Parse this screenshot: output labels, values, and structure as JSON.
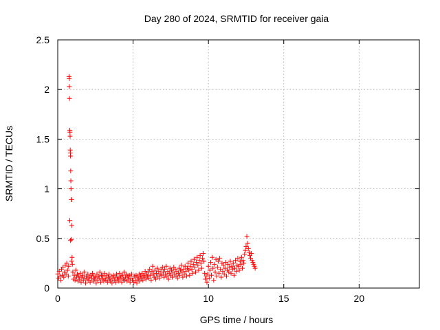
{
  "chart_data": {
    "type": "scatter",
    "title": "Day 280 of 2024, SRMTID for receiver gaia",
    "xlabel": "GPS time / hours",
    "ylabel": "SRMTID / TECUs",
    "xlim": [
      0,
      24
    ],
    "ylim": [
      0,
      2.5
    ],
    "xticks": [
      0,
      5,
      10,
      15,
      20
    ],
    "xtick_labels": [
      "0",
      "5",
      "10",
      "15",
      "20"
    ],
    "yticks": [
      0,
      0.5,
      1,
      1.5,
      2,
      2.5
    ],
    "ytick_labels": [
      "0",
      "0.5",
      "1",
      "1.5",
      "2",
      "2.5"
    ],
    "grid": true,
    "marker": "+",
    "marker_color": "#ff0000",
    "series": [
      {
        "name": "SRMTID",
        "points": [
          [
            0.0,
            0.14
          ],
          [
            0.05,
            0.1
          ],
          [
            0.1,
            0.17
          ],
          [
            0.15,
            0.12
          ],
          [
            0.2,
            0.08
          ],
          [
            0.25,
            0.19
          ],
          [
            0.3,
            0.13
          ],
          [
            0.35,
            0.21
          ],
          [
            0.4,
            0.11
          ],
          [
            0.45,
            0.16
          ],
          [
            0.5,
            0.23
          ],
          [
            0.55,
            0.14
          ],
          [
            0.6,
            0.25
          ],
          [
            0.65,
            0.18
          ],
          [
            0.7,
            0.12
          ],
          [
            0.72,
            0.22
          ],
          [
            0.75,
            2.13
          ],
          [
            0.76,
            2.11
          ],
          [
            0.77,
            2.03
          ],
          [
            0.78,
            1.91
          ],
          [
            0.8,
            1.59
          ],
          [
            0.81,
            1.57
          ],
          [
            0.82,
            1.53
          ],
          [
            0.83,
            1.39
          ],
          [
            0.84,
            1.36
          ],
          [
            0.85,
            1.33
          ],
          [
            0.86,
            1.18
          ],
          [
            0.87,
            1.08
          ],
          [
            0.88,
            1.0
          ],
          [
            0.9,
            0.89
          ],
          [
            0.92,
            0.89
          ],
          [
            0.8,
            0.68
          ],
          [
            0.93,
            0.63
          ],
          [
            0.85,
            0.48
          ],
          [
            0.9,
            0.49
          ],
          [
            0.95,
            0.31
          ],
          [
            0.92,
            0.27
          ],
          [
            0.97,
            0.24
          ],
          [
            1.0,
            0.16
          ],
          [
            1.05,
            0.09
          ],
          [
            1.1,
            0.13
          ],
          [
            1.15,
            0.08
          ],
          [
            1.2,
            0.18
          ],
          [
            1.25,
            0.11
          ],
          [
            1.3,
            0.14
          ],
          [
            1.35,
            0.07
          ],
          [
            1.4,
            0.12
          ],
          [
            1.45,
            0.09
          ],
          [
            1.5,
            0.15
          ],
          [
            1.55,
            0.06
          ],
          [
            1.6,
            0.11
          ],
          [
            1.65,
            0.13
          ],
          [
            1.7,
            0.08
          ],
          [
            1.75,
            0.16
          ],
          [
            1.8,
            0.1
          ],
          [
            1.85,
            0.05
          ],
          [
            1.9,
            0.12
          ],
          [
            1.95,
            0.09
          ],
          [
            2.0,
            0.14
          ],
          [
            2.05,
            0.08
          ],
          [
            2.1,
            0.11
          ],
          [
            2.15,
            0.06
          ],
          [
            2.2,
            0.13
          ],
          [
            2.25,
            0.1
          ],
          [
            2.3,
            0.15
          ],
          [
            2.35,
            0.07
          ],
          [
            2.4,
            0.12
          ],
          [
            2.45,
            0.09
          ],
          [
            2.5,
            0.11
          ],
          [
            2.55,
            0.05
          ],
          [
            2.6,
            0.14
          ],
          [
            2.65,
            0.08
          ],
          [
            2.7,
            0.12
          ],
          [
            2.75,
            0.1
          ],
          [
            2.8,
            0.16
          ],
          [
            2.85,
            0.06
          ],
          [
            2.9,
            0.13
          ],
          [
            2.95,
            0.09
          ],
          [
            3.0,
            0.12
          ],
          [
            3.05,
            0.07
          ],
          [
            3.1,
            0.15
          ],
          [
            3.15,
            0.1
          ],
          [
            3.2,
            0.08
          ],
          [
            3.25,
            0.13
          ],
          [
            3.3,
            0.06
          ],
          [
            3.35,
            0.11
          ],
          [
            3.4,
            0.14
          ],
          [
            3.45,
            0.09
          ],
          [
            3.5,
            0.07
          ],
          [
            3.55,
            0.12
          ],
          [
            3.6,
            0.05
          ],
          [
            3.65,
            0.1
          ],
          [
            3.7,
            0.13
          ],
          [
            3.75,
            0.08
          ],
          [
            3.8,
            0.11
          ],
          [
            3.85,
            0.06
          ],
          [
            3.9,
            0.14
          ],
          [
            3.95,
            0.09
          ],
          [
            4.0,
            0.11
          ],
          [
            4.05,
            0.07
          ],
          [
            4.1,
            0.15
          ],
          [
            4.15,
            0.1
          ],
          [
            4.2,
            0.12
          ],
          [
            4.25,
            0.06
          ],
          [
            4.3,
            0.13
          ],
          [
            4.35,
            0.09
          ],
          [
            4.4,
            0.16
          ],
          [
            4.45,
            0.08
          ],
          [
            4.5,
            0.11
          ],
          [
            4.55,
            0.14
          ],
          [
            4.6,
            0.07
          ],
          [
            4.65,
            0.12
          ],
          [
            4.7,
            0.09
          ],
          [
            4.75,
            0.13
          ],
          [
            4.8,
            0.06
          ],
          [
            4.85,
            0.1
          ],
          [
            4.9,
            0.14
          ],
          [
            4.95,
            0.08
          ],
          [
            5.0,
            0.1
          ],
          [
            5.05,
            0.06
          ],
          [
            5.1,
            0.12
          ],
          [
            5.15,
            0.08
          ],
          [
            5.2,
            0.13
          ],
          [
            5.25,
            0.05
          ],
          [
            5.3,
            0.11
          ],
          [
            5.35,
            0.09
          ],
          [
            5.4,
            0.14
          ],
          [
            5.45,
            0.07
          ],
          [
            5.5,
            0.12
          ],
          [
            5.55,
            0.1
          ],
          [
            5.6,
            0.15
          ],
          [
            5.65,
            0.08
          ],
          [
            5.7,
            0.13
          ],
          [
            5.75,
            0.11
          ],
          [
            5.8,
            0.17
          ],
          [
            5.85,
            0.09
          ],
          [
            5.9,
            0.14
          ],
          [
            5.95,
            0.12
          ],
          [
            6.0,
            0.16
          ],
          [
            6.05,
            0.1
          ],
          [
            6.1,
            0.19
          ],
          [
            6.15,
            0.13
          ],
          [
            6.2,
            0.08
          ],
          [
            6.25,
            0.17
          ],
          [
            6.3,
            0.22
          ],
          [
            6.35,
            0.14
          ],
          [
            6.4,
            0.11
          ],
          [
            6.45,
            0.18
          ],
          [
            6.5,
            0.09
          ],
          [
            6.55,
            0.15
          ],
          [
            6.6,
            0.2
          ],
          [
            6.65,
            0.12
          ],
          [
            6.7,
            0.17
          ],
          [
            6.75,
            0.1
          ],
          [
            6.8,
            0.14
          ],
          [
            6.85,
            0.19
          ],
          [
            6.9,
            0.13
          ],
          [
            6.95,
            0.21
          ],
          [
            7.0,
            0.16
          ],
          [
            7.05,
            0.11
          ],
          [
            7.1,
            0.19
          ],
          [
            7.15,
            0.14
          ],
          [
            7.2,
            0.22
          ],
          [
            7.25,
            0.12
          ],
          [
            7.3,
            0.17
          ],
          [
            7.35,
            0.09
          ],
          [
            7.4,
            0.15
          ],
          [
            7.45,
            0.2
          ],
          [
            7.5,
            0.13
          ],
          [
            7.55,
            0.18
          ],
          [
            7.6,
            0.11
          ],
          [
            7.65,
            0.16
          ],
          [
            7.7,
            0.21
          ],
          [
            7.75,
            0.14
          ],
          [
            7.8,
            0.19
          ],
          [
            7.85,
            0.12
          ],
          [
            7.9,
            0.17
          ],
          [
            7.95,
            0.1
          ],
          [
            8.0,
            0.15
          ],
          [
            8.05,
            0.2
          ],
          [
            8.1,
            0.13
          ],
          [
            8.15,
            0.18
          ],
          [
            8.2,
            0.23
          ],
          [
            8.25,
            0.16
          ],
          [
            8.3,
            0.11
          ],
          [
            8.35,
            0.19
          ],
          [
            8.4,
            0.14
          ],
          [
            8.45,
            0.22
          ],
          [
            8.5,
            0.17
          ],
          [
            8.55,
            0.12
          ],
          [
            8.6,
            0.2
          ],
          [
            8.65,
            0.25
          ],
          [
            8.7,
            0.18
          ],
          [
            8.75,
            0.13
          ],
          [
            8.8,
            0.22
          ],
          [
            8.85,
            0.27
          ],
          [
            8.9,
            0.19
          ],
          [
            8.95,
            0.15
          ],
          [
            9.0,
            0.24
          ],
          [
            9.05,
            0.29
          ],
          [
            9.1,
            0.21
          ],
          [
            9.15,
            0.16
          ],
          [
            9.2,
            0.26
          ],
          [
            9.25,
            0.31
          ],
          [
            9.3,
            0.23
          ],
          [
            9.35,
            0.18
          ],
          [
            9.4,
            0.28
          ],
          [
            9.45,
            0.33
          ],
          [
            9.5,
            0.25
          ],
          [
            9.55,
            0.2
          ],
          [
            9.6,
            0.3
          ],
          [
            9.65,
            0.35
          ],
          [
            9.7,
            0.27
          ],
          [
            9.75,
            0.15
          ],
          [
            9.8,
            0.09
          ],
          [
            9.85,
            0.12
          ],
          [
            9.9,
            0.06
          ],
          [
            9.95,
            0.14
          ],
          [
            10.0,
            0.22
          ],
          [
            10.05,
            0.1
          ],
          [
            10.1,
            0.18
          ],
          [
            10.15,
            0.26
          ],
          [
            10.2,
            0.13
          ],
          [
            10.25,
            0.31
          ],
          [
            10.3,
            0.2
          ],
          [
            10.35,
            0.08
          ],
          [
            10.4,
            0.24
          ],
          [
            10.45,
            0.16
          ],
          [
            10.5,
            0.29
          ],
          [
            10.55,
            0.12
          ],
          [
            10.6,
            0.21
          ],
          [
            10.65,
            0.27
          ],
          [
            10.7,
            0.15
          ],
          [
            10.75,
            0.3
          ],
          [
            10.8,
            0.19
          ],
          [
            10.85,
            0.11
          ],
          [
            10.9,
            0.25
          ],
          [
            10.95,
            0.17
          ],
          [
            11.0,
            0.23
          ],
          [
            11.05,
            0.14
          ],
          [
            11.1,
            0.2
          ],
          [
            11.15,
            0.26
          ],
          [
            11.2,
            0.12
          ],
          [
            11.25,
            0.18
          ],
          [
            11.3,
            0.24
          ],
          [
            11.35,
            0.16
          ],
          [
            11.4,
            0.21
          ],
          [
            11.45,
            0.27
          ],
          [
            11.5,
            0.15
          ],
          [
            11.55,
            0.22
          ],
          [
            11.6,
            0.19
          ],
          [
            11.65,
            0.25
          ],
          [
            11.7,
            0.13
          ],
          [
            11.75,
            0.2
          ],
          [
            11.8,
            0.28
          ],
          [
            11.85,
            0.17
          ],
          [
            11.9,
            0.23
          ],
          [
            11.95,
            0.3
          ],
          [
            12.0,
            0.22
          ],
          [
            12.05,
            0.18
          ],
          [
            12.1,
            0.27
          ],
          [
            12.15,
            0.24
          ],
          [
            12.2,
            0.31
          ],
          [
            12.25,
            0.2
          ],
          [
            12.3,
            0.28
          ],
          [
            12.35,
            0.25
          ],
          [
            12.4,
            0.34
          ],
          [
            12.45,
            0.38
          ],
          [
            12.5,
            0.42
          ],
          [
            12.55,
            0.52
          ],
          [
            12.6,
            0.45
          ],
          [
            12.65,
            0.4
          ],
          [
            12.7,
            0.36
          ],
          [
            12.75,
            0.33
          ],
          [
            12.8,
            0.3
          ],
          [
            12.85,
            0.35
          ],
          [
            12.9,
            0.28
          ],
          [
            12.95,
            0.26
          ],
          [
            13.0,
            0.24
          ],
          [
            13.05,
            0.22
          ],
          [
            13.1,
            0.2
          ]
        ]
      }
    ]
  }
}
